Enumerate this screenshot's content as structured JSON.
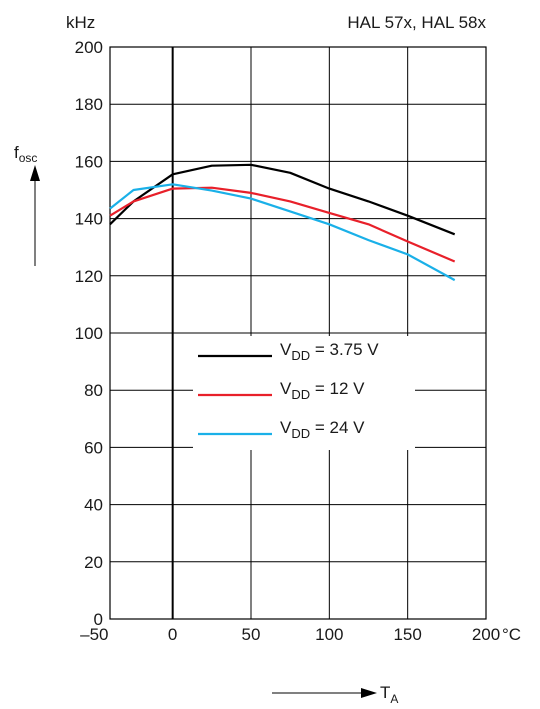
{
  "chart_data": {
    "type": "line",
    "title": "HAL 57x, HAL 58x",
    "ylabel_unit": "kHz",
    "xlabel_unit": "°C",
    "ylabel_main": "f",
    "ylabel_sub": "osc",
    "xlabel_main": "T",
    "xlabel_sub": "A",
    "xlim": [
      -40,
      200
    ],
    "ylim": [
      0,
      200
    ],
    "xticks": [
      -50,
      0,
      50,
      100,
      150,
      200
    ],
    "xtick_labels": [
      "–50",
      "0",
      "50",
      "100",
      "150",
      "200"
    ],
    "yticks": [
      0,
      20,
      40,
      60,
      80,
      100,
      120,
      140,
      160,
      180,
      200
    ],
    "ytick_labels": [
      "0",
      "20",
      "40",
      "60",
      "80",
      "100",
      "120",
      "140",
      "160",
      "180",
      "200"
    ],
    "grid": true,
    "legend_position": "center",
    "series": [
      {
        "name_main": "V",
        "name_sub": "DD",
        "name_rest": " = 3.75 V",
        "color": "#000000",
        "x": [
          -40,
          -25,
          0,
          25,
          50,
          75,
          100,
          125,
          150,
          180
        ],
        "y": [
          138,
          146,
          155.5,
          158.5,
          158.8,
          156,
          150.5,
          146,
          141,
          134.5
        ]
      },
      {
        "name_main": "V",
        "name_sub": "DD",
        "name_rest": " = 12 V",
        "color": "#e8202a",
        "x": [
          -40,
          -25,
          0,
          25,
          50,
          75,
          100,
          125,
          150,
          180
        ],
        "y": [
          141,
          146,
          150.5,
          150.8,
          149,
          146,
          142,
          138,
          132,
          125
        ]
      },
      {
        "name_main": "V",
        "name_sub": "DD",
        "name_rest": " = 24 V",
        "color": "#1ab0e8",
        "x": [
          -40,
          -25,
          0,
          25,
          50,
          75,
          100,
          125,
          150,
          180
        ],
        "y": [
          143.5,
          150,
          152,
          149.8,
          147,
          142.5,
          138,
          132.5,
          127.5,
          118.5
        ]
      }
    ]
  }
}
